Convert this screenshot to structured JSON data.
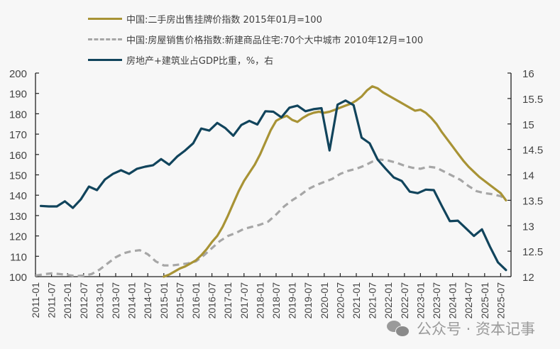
{
  "chart_data": {
    "type": "line",
    "title": "",
    "xlabel": "",
    "ylabel_left": "",
    "ylabel_right": "",
    "x_axis": {
      "start": "2011-01",
      "end": "2025-07",
      "tick_labels": [
        "2011-01",
        "2011-07",
        "2012-01",
        "2012-07",
        "2013-01",
        "2013-07",
        "2014-01",
        "2014-07",
        "2015-01",
        "2015-07",
        "2016-01",
        "2016-07",
        "2017-01",
        "2017-07",
        "2018-01",
        "2018-07",
        "2019-01",
        "2019-07",
        "2020-01",
        "2020-07",
        "2021-01",
        "2021-07",
        "2022-01",
        "2022-07",
        "2023-01",
        "2023-07",
        "2024-01",
        "2024-07",
        "2025-01",
        "2025-07"
      ],
      "label_rotation": "vertical"
    },
    "y_left": {
      "ylim": [
        100,
        200
      ],
      "ticks": [
        100,
        110,
        120,
        130,
        140,
        150,
        160,
        170,
        180,
        190,
        200
      ]
    },
    "y_right": {
      "ylim": [
        12,
        16
      ],
      "ticks": [
        "12",
        "12.5",
        "13",
        "13.5",
        "14",
        "14.5",
        "15",
        "15.5",
        "16"
      ]
    },
    "grid": false,
    "legend_position": "top-left",
    "series": [
      {
        "name": "中国:二手房出售挂牌价指数 2015年01月=100",
        "axis": "left",
        "style": "solid",
        "color": "#a89335",
        "frequency": "monthly",
        "start": "2015-01",
        "points": [
          [
            "2015-01",
            100
          ],
          [
            "2015-03",
            101
          ],
          [
            "2015-05",
            102.5
          ],
          [
            "2015-07",
            104
          ],
          [
            "2015-09",
            105
          ],
          [
            "2015-11",
            106.5
          ],
          [
            "2016-01",
            108
          ],
          [
            "2016-03",
            110.5
          ],
          [
            "2016-05",
            113.5
          ],
          [
            "2016-07",
            117
          ],
          [
            "2016-09",
            120
          ],
          [
            "2016-11",
            124.5
          ],
          [
            "2017-01",
            130
          ],
          [
            "2017-03",
            136
          ],
          [
            "2017-05",
            142
          ],
          [
            "2017-07",
            147
          ],
          [
            "2017-09",
            151
          ],
          [
            "2017-11",
            155
          ],
          [
            "2018-01",
            160
          ],
          [
            "2018-03",
            166
          ],
          [
            "2018-05",
            172
          ],
          [
            "2018-07",
            176.5
          ],
          [
            "2018-09",
            178
          ],
          [
            "2018-11",
            179
          ],
          [
            "2019-01",
            177
          ],
          [
            "2019-03",
            176
          ],
          [
            "2019-05",
            178
          ],
          [
            "2019-07",
            179.5
          ],
          [
            "2019-09",
            180.5
          ],
          [
            "2019-11",
            181
          ],
          [
            "2020-01",
            180.5
          ],
          [
            "2020-03",
            181
          ],
          [
            "2020-05",
            182
          ],
          [
            "2020-07",
            183
          ],
          [
            "2020-09",
            184
          ],
          [
            "2020-11",
            185
          ],
          [
            "2021-01",
            186.5
          ],
          [
            "2021-03",
            188.5
          ],
          [
            "2021-05",
            191.5
          ],
          [
            "2021-07",
            193.5
          ],
          [
            "2021-09",
            192.5
          ],
          [
            "2021-11",
            190.5
          ],
          [
            "2022-01",
            189
          ],
          [
            "2022-03",
            187.5
          ],
          [
            "2022-05",
            186
          ],
          [
            "2022-07",
            184.5
          ],
          [
            "2022-09",
            183
          ],
          [
            "2022-11",
            181.5
          ],
          [
            "2023-01",
            182
          ],
          [
            "2023-03",
            180.5
          ],
          [
            "2023-05",
            178
          ],
          [
            "2023-07",
            175
          ],
          [
            "2023-09",
            171
          ],
          [
            "2023-11",
            167.5
          ],
          [
            "2024-01",
            164
          ],
          [
            "2024-03",
            160.5
          ],
          [
            "2024-05",
            157
          ],
          [
            "2024-07",
            154
          ],
          [
            "2024-09",
            151.5
          ],
          [
            "2024-11",
            149
          ],
          [
            "2025-01",
            147
          ],
          [
            "2025-03",
            145
          ],
          [
            "2025-05",
            143
          ],
          [
            "2025-07",
            141
          ],
          [
            "2025-09",
            137.5
          ]
        ]
      },
      {
        "name": "中国:房屋销售价格指数:新建商品住宅:70个大中城市 2010年12月=100",
        "axis": "left",
        "style": "dashed",
        "color": "#a6a6a6",
        "frequency": "monthly",
        "points": [
          [
            "2011-01",
            100.5
          ],
          [
            "2011-04",
            101.2
          ],
          [
            "2011-07",
            101.6
          ],
          [
            "2011-10",
            101.3
          ],
          [
            "2012-01",
            100.8
          ],
          [
            "2012-04",
            100.3
          ],
          [
            "2012-07",
            100.5
          ],
          [
            "2012-10",
            101.3
          ],
          [
            "2013-01",
            103.5
          ],
          [
            "2013-04",
            106.5
          ],
          [
            "2013-07",
            109.5
          ],
          [
            "2013-10",
            111.5
          ],
          [
            "2014-01",
            112.5
          ],
          [
            "2014-04",
            113
          ],
          [
            "2014-07",
            111
          ],
          [
            "2014-10",
            107.5
          ],
          [
            "2015-01",
            105.5
          ],
          [
            "2015-04",
            105.5
          ],
          [
            "2015-07",
            106
          ],
          [
            "2015-10",
            106.5
          ],
          [
            "2016-01",
            107.5
          ],
          [
            "2016-04",
            110.5
          ],
          [
            "2016-07",
            114
          ],
          [
            "2016-10",
            117.5
          ],
          [
            "2017-01",
            120
          ],
          [
            "2017-04",
            121.5
          ],
          [
            "2017-07",
            123.5
          ],
          [
            "2017-10",
            124.5
          ],
          [
            "2018-01",
            125.5
          ],
          [
            "2018-04",
            127
          ],
          [
            "2018-07",
            130.5
          ],
          [
            "2018-10",
            134.5
          ],
          [
            "2019-01",
            137.5
          ],
          [
            "2019-04",
            140
          ],
          [
            "2019-07",
            143
          ],
          [
            "2019-10",
            145
          ],
          [
            "2020-01",
            146.5
          ],
          [
            "2020-04",
            148
          ],
          [
            "2020-07",
            150.5
          ],
          [
            "2020-10",
            152
          ],
          [
            "2021-01",
            153
          ],
          [
            "2021-04",
            154.5
          ],
          [
            "2021-07",
            156.5
          ],
          [
            "2021-10",
            157.5
          ],
          [
            "2022-01",
            157
          ],
          [
            "2022-04",
            156
          ],
          [
            "2022-07",
            154.5
          ],
          [
            "2022-10",
            153.5
          ],
          [
            "2023-01",
            153
          ],
          [
            "2023-04",
            154
          ],
          [
            "2023-07",
            153.5
          ],
          [
            "2023-10",
            151.5
          ],
          [
            "2024-01",
            149.5
          ],
          [
            "2024-04",
            147.5
          ],
          [
            "2024-07",
            144.5
          ],
          [
            "2024-10",
            142
          ],
          [
            "2025-01",
            141
          ],
          [
            "2025-04",
            140.5
          ],
          [
            "2025-07",
            139.5
          ],
          [
            "2025-09",
            138
          ]
        ]
      },
      {
        "name": "房地产+建筑业占GDP比重，%，右",
        "axis": "right",
        "style": "solid",
        "color": "#11445c",
        "frequency": "quarterly",
        "points": [
          [
            "2011-03",
            13.39
          ],
          [
            "2011-06",
            13.38
          ],
          [
            "2011-09",
            13.38
          ],
          [
            "2011-12",
            13.48
          ],
          [
            "2012-03",
            13.35
          ],
          [
            "2012-06",
            13.52
          ],
          [
            "2012-09",
            13.77
          ],
          [
            "2012-12",
            13.7
          ],
          [
            "2013-03",
            13.91
          ],
          [
            "2013-06",
            14.02
          ],
          [
            "2013-09",
            14.09
          ],
          [
            "2013-12",
            14.02
          ],
          [
            "2014-03",
            14.12
          ],
          [
            "2014-06",
            14.16
          ],
          [
            "2014-09",
            14.19
          ],
          [
            "2014-12",
            14.31
          ],
          [
            "2015-03",
            14.2
          ],
          [
            "2015-06",
            14.36
          ],
          [
            "2015-09",
            14.48
          ],
          [
            "2015-12",
            14.62
          ],
          [
            "2016-03",
            14.91
          ],
          [
            "2016-06",
            14.87
          ],
          [
            "2016-09",
            15.02
          ],
          [
            "2016-12",
            14.92
          ],
          [
            "2017-03",
            14.77
          ],
          [
            "2017-06",
            14.98
          ],
          [
            "2017-09",
            15.06
          ],
          [
            "2017-12",
            14.99
          ],
          [
            "2018-03",
            15.25
          ],
          [
            "2018-06",
            15.24
          ],
          [
            "2018-09",
            15.13
          ],
          [
            "2018-12",
            15.32
          ],
          [
            "2019-03",
            15.36
          ],
          [
            "2019-06",
            15.25
          ],
          [
            "2019-09",
            15.29
          ],
          [
            "2019-12",
            15.31
          ],
          [
            "2020-03",
            14.48
          ],
          [
            "2020-06",
            15.38
          ],
          [
            "2020-09",
            15.46
          ],
          [
            "2020-12",
            15.37
          ],
          [
            "2021-03",
            14.73
          ],
          [
            "2021-06",
            14.62
          ],
          [
            "2021-09",
            14.3
          ],
          [
            "2021-12",
            14.12
          ],
          [
            "2022-03",
            13.95
          ],
          [
            "2022-06",
            13.88
          ],
          [
            "2022-09",
            13.67
          ],
          [
            "2022-12",
            13.64
          ],
          [
            "2023-03",
            13.71
          ],
          [
            "2023-06",
            13.7
          ],
          [
            "2023-09",
            13.39
          ],
          [
            "2023-12",
            13.09
          ],
          [
            "2024-03",
            13.1
          ],
          [
            "2024-06",
            12.95
          ],
          [
            "2024-09",
            12.8
          ],
          [
            "2024-12",
            12.93
          ],
          [
            "2025-03",
            12.59
          ],
          [
            "2025-06",
            12.28
          ],
          [
            "2025-09",
            12.13
          ]
        ]
      }
    ]
  },
  "legend": {
    "items": [
      {
        "label": "中国:二手房出售挂牌价指数 2015年01月=100",
        "style": "solid",
        "color": "#a89335"
      },
      {
        "label": "中国:房屋销售价格指数:新建商品住宅:70个大中城市 2010年12月=100",
        "style": "dashed",
        "color": "#a6a6a6"
      },
      {
        "label": "房地产+建筑业占GDP比重，%，右",
        "style": "solid",
        "color": "#11445c"
      }
    ]
  },
  "watermark": {
    "text": "公众号 · 资本记事",
    "icon": "wechat-icon"
  }
}
